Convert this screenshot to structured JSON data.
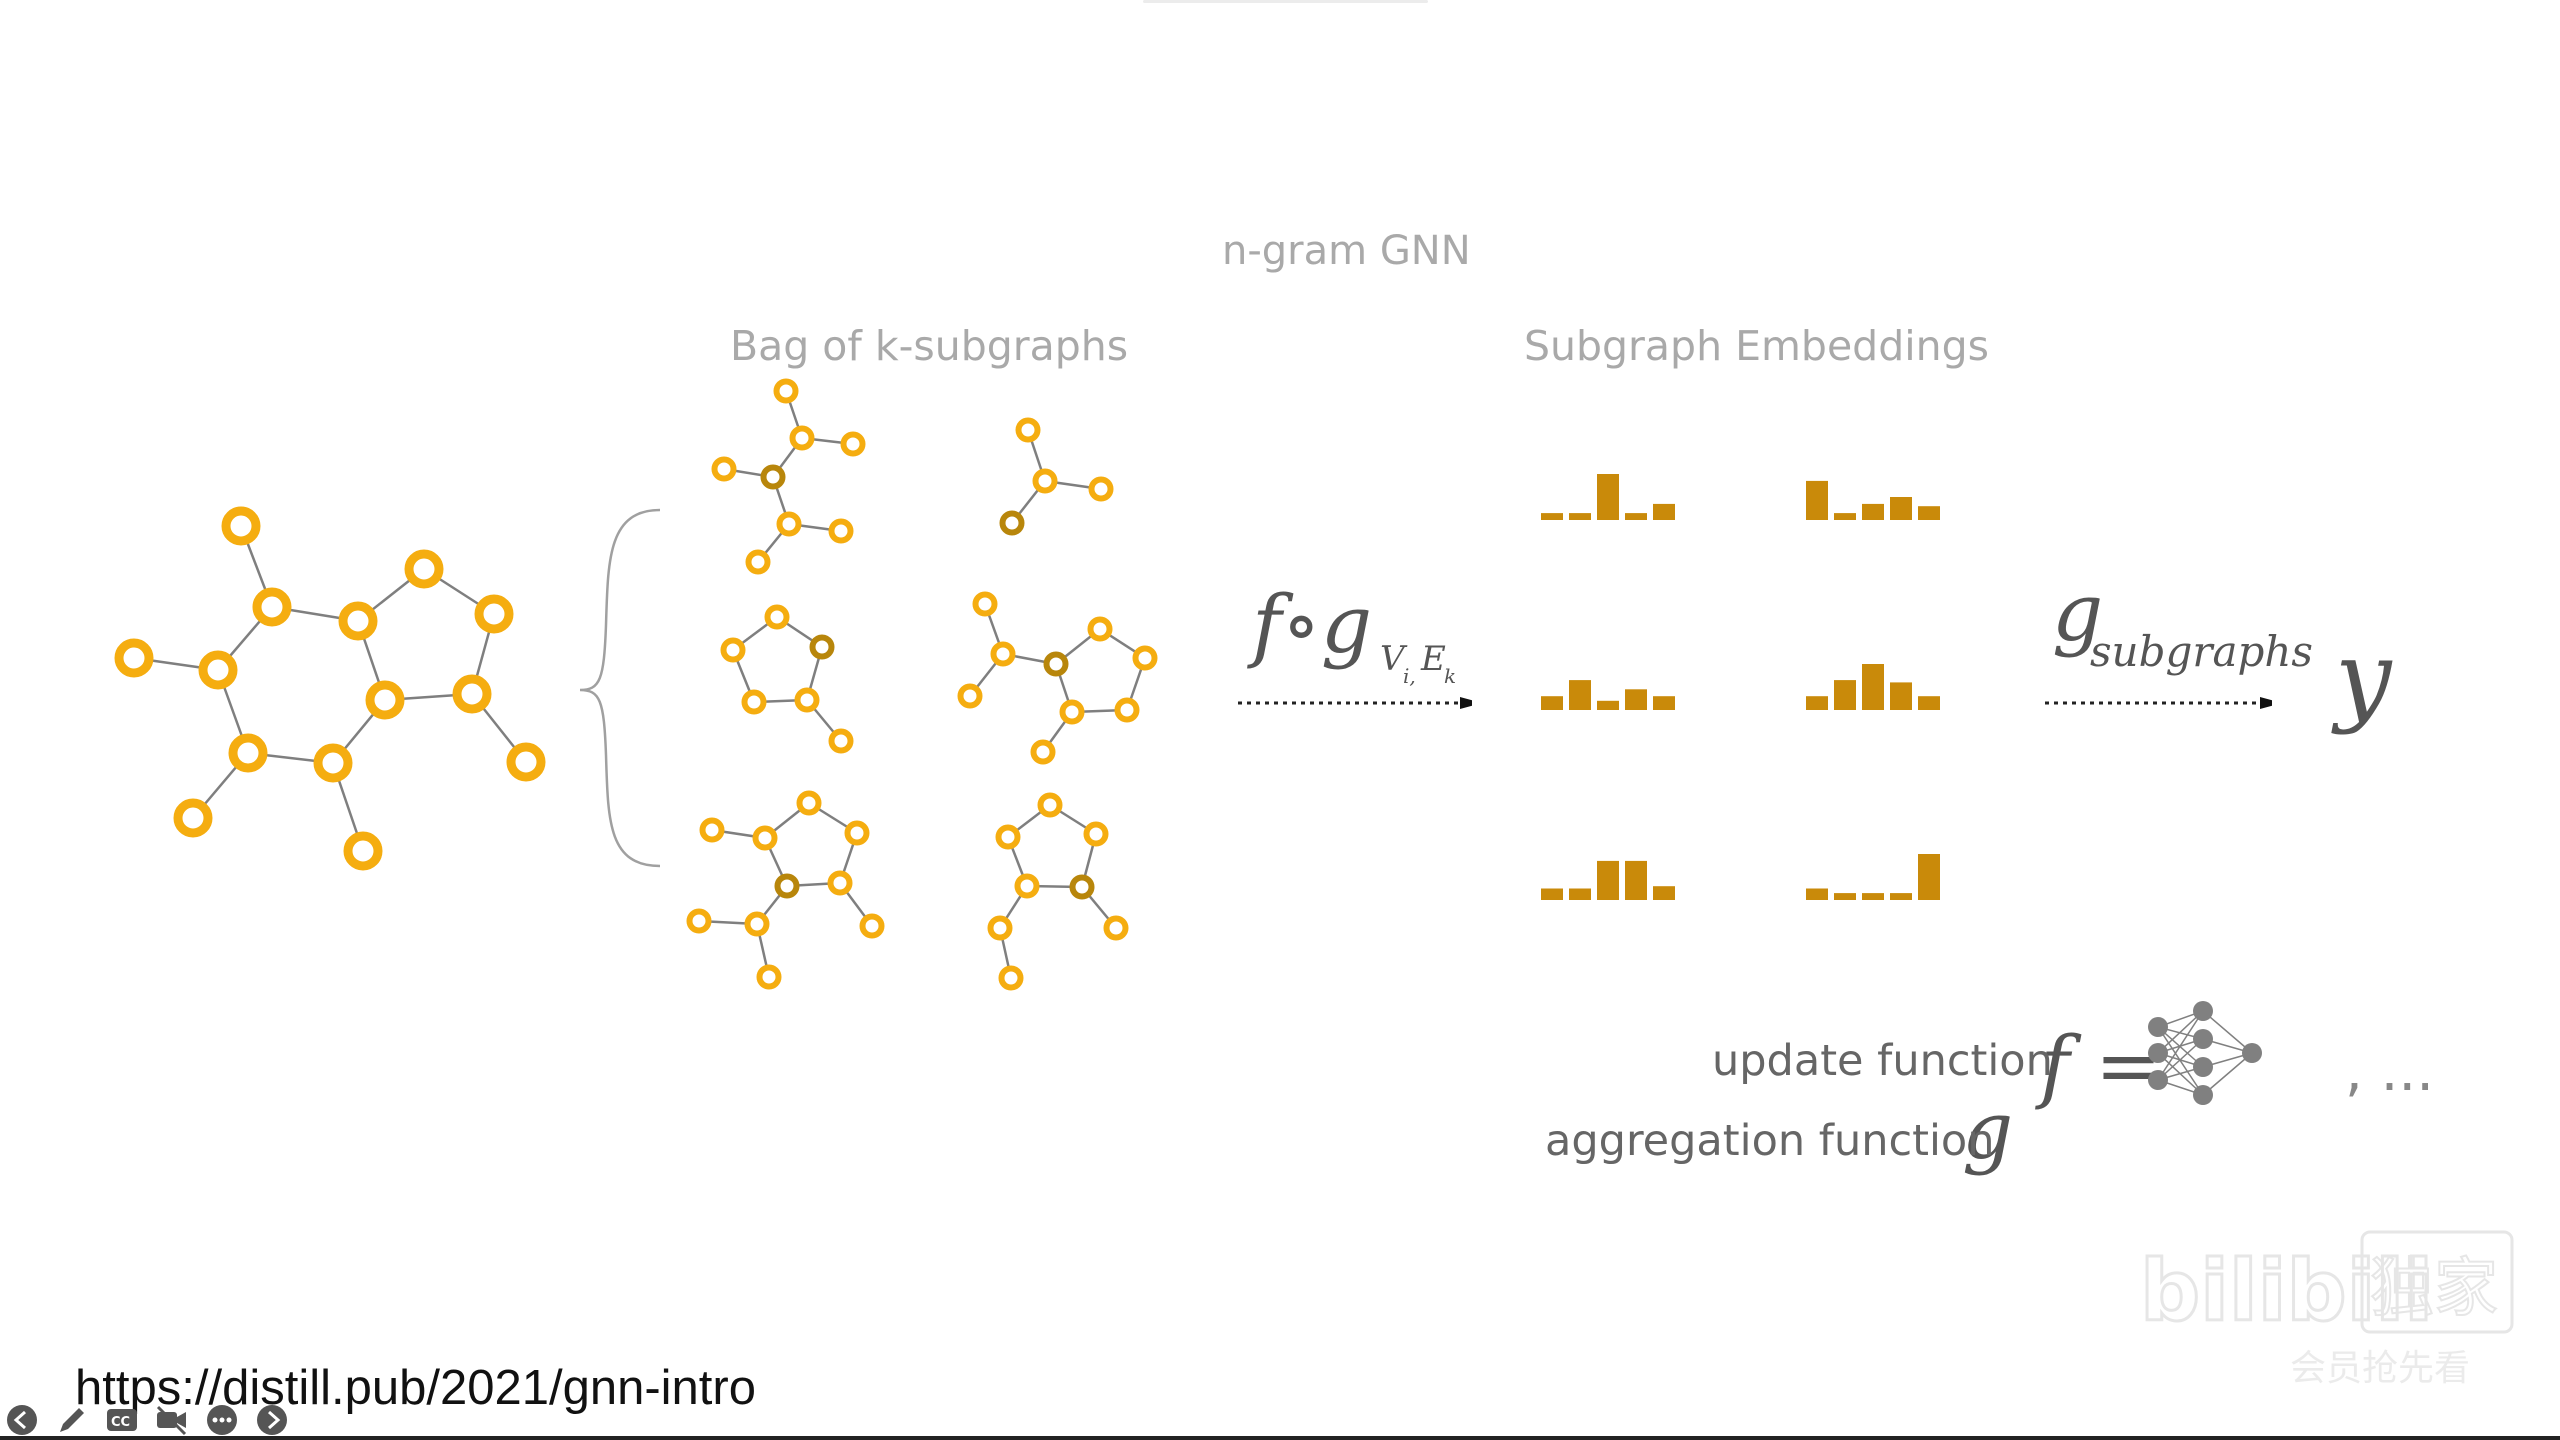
{
  "title": "n-gram GNN",
  "bag_label": "Bag of k-subgraphs",
  "embeddings_label": "Subgraph Embeddings",
  "math": {
    "fg": "f∘g",
    "fg_sub": "V",
    "fg_sub_i": "i,",
    "fg_sub_e": "E",
    "fg_sub_k": "k",
    "g_subgraphs": "g",
    "g_subgraphs_sub": "subgraphs",
    "y": "y"
  },
  "update_label": "update function",
  "update_symbol": "f =",
  "update_tail": ", ...",
  "aggregation_label": "aggregation function",
  "aggregation_symbol": "g",
  "url": "https://distill.pub/2021/gnn-intro",
  "embeddings": [
    [
      0.15,
      0.15,
      1.0,
      0.15,
      0.35
    ],
    [
      0.85,
      0.15,
      0.35,
      0.5,
      0.3
    ],
    [
      0.3,
      0.65,
      0.2,
      0.45,
      0.3
    ],
    [
      0.3,
      0.65,
      1.0,
      0.6,
      0.3
    ],
    [
      0.25,
      0.25,
      0.85,
      0.85,
      0.3
    ],
    [
      0.25,
      0.15,
      0.15,
      0.15,
      1.0
    ]
  ],
  "colors": {
    "node": "#f5ad10",
    "node_dark": "#b8860b",
    "bar": "#c98a0a",
    "edge": "#7f7f7f",
    "label": "#a9a9a9",
    "nn": "#808080"
  },
  "watermark": {
    "brand": "bilibili",
    "tag": "独家",
    "sub": "会员抢先看"
  }
}
